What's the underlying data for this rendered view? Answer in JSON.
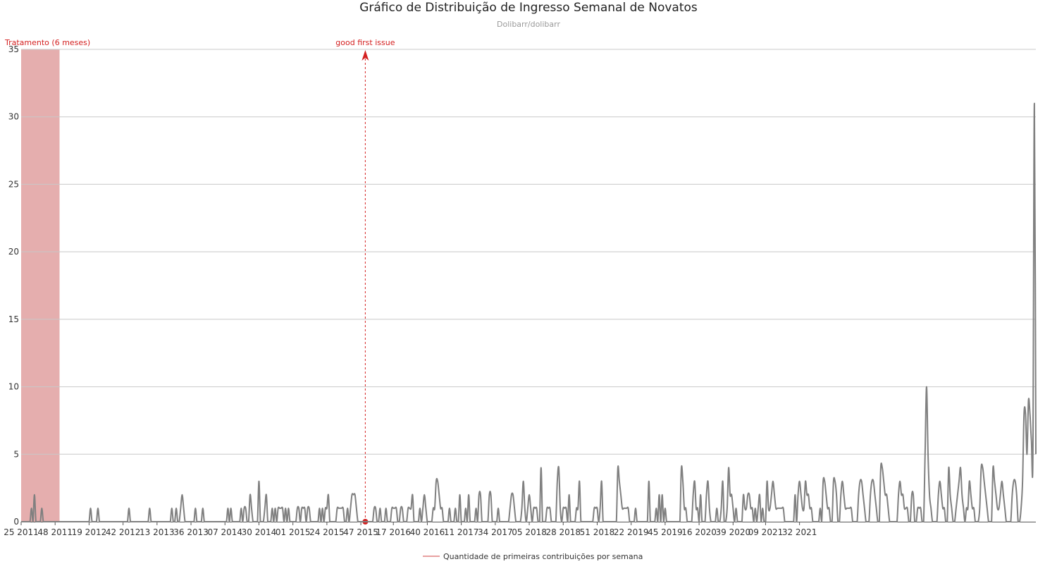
{
  "chart_data": {
    "type": "line",
    "title": "Gráfico de Distribuição de Ingresso Semanal de Novatos",
    "subtitle": "Dolibarr/dolibarr",
    "xlabel": "",
    "ylabel": "",
    "ylim": [
      0,
      35
    ],
    "y_ticks": [
      0,
      5,
      10,
      15,
      20,
      25,
      30,
      35
    ],
    "grid": "horizontal",
    "legend_placement": "bottom-center",
    "x_ticks": [
      "25 2011",
      "48 2011",
      "19 2012",
      "42 2012",
      "13 2013",
      "36 2013",
      "07 2014",
      "30 2014",
      "01 2015",
      "24 2015",
      "47 2015",
      "17 2016",
      "40 2016",
      "11 2017",
      "34 2017",
      "05 2018",
      "28 2018",
      "51 2018",
      "22 2019",
      "45 2019",
      "16 2020",
      "39 2020",
      "09 2021",
      "32 2021"
    ],
    "x_first_week": "25 2011",
    "treatment": {
      "label": "Tratamento (6 meses)",
      "start": "25 2011",
      "end": "51 2011",
      "color": "#e5aeae"
    },
    "event": {
      "label": "good first issue",
      "week": "50 2015",
      "color": "#d42020"
    },
    "series": [
      {
        "name": "Quantidade de primeiras contribuições por semana",
        "color": "#808080",
        "legend_color": "#e8a0a0",
        "values": [
          0,
          0,
          0,
          0,
          0,
          0,
          0,
          1,
          0,
          2,
          0,
          0,
          0,
          0,
          1,
          0,
          0,
          0,
          0,
          0,
          0,
          0,
          0,
          0,
          0,
          0,
          0,
          0,
          0,
          0,
          0,
          0,
          0,
          0,
          0,
          0,
          0,
          0,
          0,
          0,
          0,
          0,
          0,
          0,
          0,
          0,
          0,
          1,
          0,
          0,
          0,
          0,
          1,
          0,
          0,
          0,
          0,
          0,
          0,
          0,
          0,
          0,
          0,
          0,
          0,
          0,
          0,
          0,
          0,
          0,
          0,
          0,
          0,
          1,
          0,
          0,
          0,
          0,
          0,
          0,
          0,
          0,
          0,
          0,
          0,
          0,
          0,
          1,
          0,
          0,
          0,
          0,
          0,
          0,
          0,
          0,
          0,
          0,
          0,
          0,
          0,
          0,
          1,
          0,
          0,
          1,
          0,
          0,
          1,
          2,
          1,
          0,
          0,
          0,
          0,
          0,
          0,
          0,
          1,
          0,
          0,
          0,
          0,
          1,
          0,
          0,
          0,
          0,
          0,
          0,
          0,
          0,
          0,
          0,
          0,
          0,
          0,
          0,
          0,
          0,
          1,
          0,
          1,
          0,
          0,
          0,
          0,
          0,
          0,
          1,
          0,
          1,
          1,
          0,
          0,
          2,
          1,
          0,
          0,
          0,
          0,
          3,
          0,
          0,
          0,
          1,
          2,
          0,
          0,
          0,
          1,
          0,
          1,
          0,
          1,
          1,
          1,
          1,
          0,
          1,
          0,
          1,
          0,
          0,
          0,
          0,
          0,
          1,
          1,
          0,
          1,
          1,
          1,
          0,
          1,
          1,
          0,
          0,
          0,
          0,
          0,
          0,
          1,
          0,
          1,
          0,
          1,
          1,
          2,
          0,
          0,
          0,
          0,
          0,
          1,
          1,
          1,
          1,
          1,
          0,
          0,
          1,
          0,
          1,
          2,
          2,
          2,
          1,
          0,
          0,
          0,
          0,
          0,
          0,
          0,
          0,
          0,
          0,
          0,
          1,
          1,
          0,
          0,
          1,
          0,
          0,
          0,
          1,
          0,
          0,
          0,
          1,
          1,
          1,
          1,
          0,
          0,
          1,
          1,
          0,
          0,
          0,
          1,
          1,
          1,
          2,
          0,
          0,
          0,
          0,
          1,
          0,
          1,
          2,
          1,
          0,
          0,
          0,
          0,
          1,
          1,
          3,
          3,
          2,
          1,
          1,
          0,
          0,
          0,
          0,
          1,
          0,
          0,
          0,
          1,
          0,
          0,
          2,
          0,
          0,
          0,
          1,
          0,
          2,
          0,
          0,
          0,
          0,
          1,
          0,
          2,
          2,
          0,
          0,
          0,
          0,
          0,
          2,
          2,
          0,
          0,
          0,
          0,
          1,
          0,
          0,
          0,
          0,
          0,
          0,
          0,
          1,
          2,
          2,
          1,
          0,
          0,
          0,
          0,
          1,
          3,
          1,
          0,
          1,
          2,
          1,
          0,
          1,
          1,
          1,
          0,
          0,
          4,
          0,
          0,
          0,
          1,
          1,
          1,
          0,
          0,
          0,
          0,
          3,
          4,
          1,
          0,
          1,
          1,
          1,
          0,
          2,
          0,
          0,
          0,
          0,
          1,
          1,
          3,
          0,
          0,
          0,
          0,
          0,
          0,
          0,
          0,
          0,
          1,
          1,
          1,
          0,
          1,
          3,
          0,
          0,
          0,
          0,
          0,
          0,
          0,
          0,
          0,
          0,
          4,
          3,
          2,
          1,
          1,
          1,
          1,
          1,
          0,
          0,
          0,
          0,
          1,
          0,
          0,
          0,
          0,
          0,
          0,
          0,
          0,
          3,
          0,
          0,
          0,
          0,
          1,
          0,
          2,
          0,
          2,
          0,
          1,
          0,
          0,
          0,
          0,
          0,
          0,
          0,
          0,
          0,
          0,
          4,
          3,
          1,
          1,
          0,
          0,
          0,
          0,
          2,
          3,
          1,
          1,
          0,
          2,
          0,
          0,
          0,
          2,
          3,
          1,
          0,
          0,
          0,
          0,
          1,
          0,
          0,
          1,
          3,
          0,
          0,
          1,
          4,
          2,
          2,
          1,
          0,
          1,
          0,
          0,
          0,
          0,
          2,
          1,
          1,
          2,
          2,
          1,
          1,
          0,
          1,
          0,
          1,
          2,
          0,
          1,
          0,
          0,
          3,
          1,
          1,
          2,
          3,
          2,
          1,
          1,
          1,
          1,
          1,
          1,
          0,
          0,
          0,
          0,
          0,
          0,
          0,
          2,
          0,
          2,
          3,
          2,
          1,
          1,
          3,
          2,
          2,
          1,
          1,
          0,
          0,
          0,
          0,
          0,
          1,
          0,
          3,
          3,
          2,
          1,
          1,
          0,
          0,
          3,
          3,
          2,
          0,
          0,
          2,
          3,
          2,
          1,
          1,
          1,
          1,
          1,
          0,
          0,
          0,
          0,
          2,
          3,
          3,
          2,
          1,
          0,
          0,
          0,
          2,
          3,
          3,
          2,
          1,
          0,
          0,
          4,
          4,
          3,
          2,
          2,
          1,
          0,
          0,
          0,
          0,
          0,
          0,
          2,
          3,
          2,
          2,
          1,
          1,
          1,
          0,
          0,
          2,
          2,
          0,
          0,
          1,
          1,
          1,
          0,
          0,
          5,
          10,
          5,
          2,
          1,
          0,
          0,
          0,
          0,
          2,
          3,
          2,
          1,
          1,
          0,
          0,
          4,
          2,
          1,
          0,
          0,
          1,
          2,
          3,
          4,
          2,
          1,
          0,
          1,
          1,
          3,
          2,
          1,
          1,
          0,
          0,
          0,
          1,
          4,
          4,
          3,
          2,
          1,
          0,
          0,
          0,
          4,
          3,
          2,
          1,
          1,
          2,
          3,
          2,
          1,
          0,
          0,
          0,
          0,
          2,
          3,
          3,
          2,
          0,
          0,
          1,
          3,
          8,
          8,
          5,
          9,
          8,
          6,
          5,
          31,
          5
        ]
      }
    ]
  }
}
